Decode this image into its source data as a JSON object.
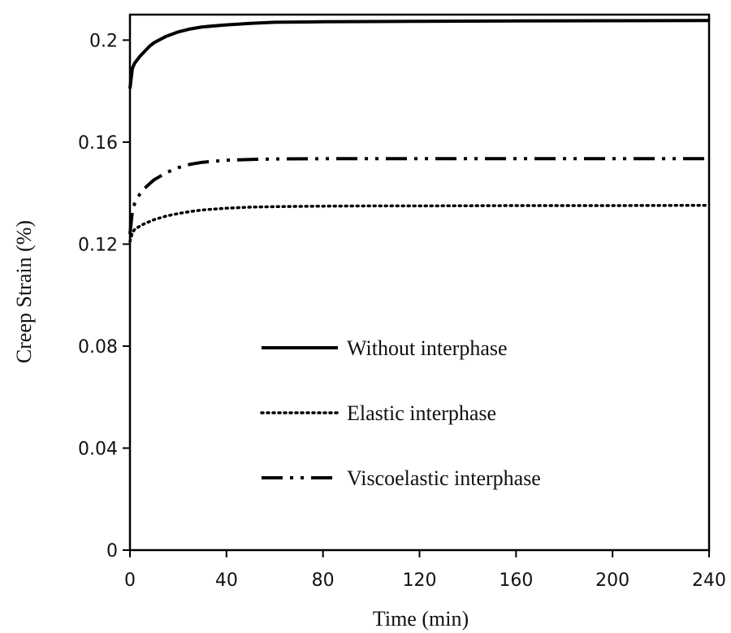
{
  "chart_data": {
    "type": "line",
    "title": "",
    "xlabel": "Time (min)",
    "ylabel": "Creep Strain (%)",
    "xlim": [
      0,
      240
    ],
    "ylim": [
      0,
      0.21
    ],
    "xticks": [
      0,
      40,
      80,
      120,
      160,
      200,
      240
    ],
    "yticks": [
      0,
      0.04,
      0.08,
      0.12,
      0.16,
      0.2
    ],
    "xtick_labels": [
      "0",
      "40",
      "80",
      "120",
      "160",
      "200",
      "240"
    ],
    "ytick_labels": [
      "0",
      "0.04",
      "0.08",
      "0.12",
      "0.16",
      "0.2"
    ],
    "grid": false,
    "legend_position": "center",
    "series": [
      {
        "name": "Without interphase",
        "style": "solid",
        "x": [
          0,
          1,
          2,
          4,
          6,
          8,
          10,
          15,
          20,
          25,
          30,
          40,
          50,
          60,
          80,
          100,
          120,
          160,
          200,
          240
        ],
        "y": [
          0.181,
          0.189,
          0.191,
          0.1935,
          0.1955,
          0.1975,
          0.199,
          0.2015,
          0.2032,
          0.2044,
          0.2052,
          0.206,
          0.2066,
          0.207,
          0.2072,
          0.2073,
          0.2074,
          0.2075,
          0.2076,
          0.2077
        ]
      },
      {
        "name": "Elastic interphase",
        "style": "dotted",
        "x": [
          0,
          1,
          2,
          4,
          6,
          8,
          10,
          15,
          20,
          25,
          30,
          40,
          50,
          60,
          80,
          100,
          120,
          160,
          200,
          240
        ],
        "y": [
          0.121,
          0.1245,
          0.1258,
          0.127,
          0.128,
          0.1288,
          0.1296,
          0.131,
          0.132,
          0.1328,
          0.1334,
          0.1341,
          0.1345,
          0.1347,
          0.1349,
          0.135,
          0.135,
          0.1351,
          0.1351,
          0.1352
        ]
      },
      {
        "name": "Viscoelastic interphase",
        "style": "dash-dot-dot",
        "x": [
          0,
          1,
          2,
          4,
          6,
          8,
          10,
          15,
          20,
          25,
          30,
          40,
          50,
          60,
          80,
          100,
          120,
          160,
          200,
          240
        ],
        "y": [
          0.124,
          0.133,
          0.136,
          0.1395,
          0.1418,
          0.1436,
          0.1452,
          0.148,
          0.15,
          0.1513,
          0.1521,
          0.1529,
          0.1532,
          0.1534,
          0.1535,
          0.1535,
          0.1535,
          0.1535,
          0.1535,
          0.1535
        ]
      }
    ]
  },
  "colors": {
    "line": "#000000",
    "background": "#ffffff"
  }
}
